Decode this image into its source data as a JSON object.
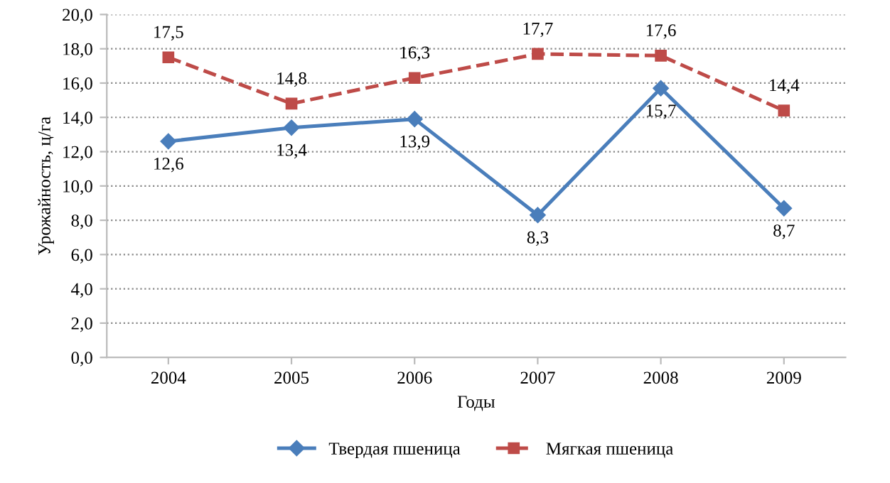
{
  "chart_data": {
    "type": "line",
    "xlabel": "Годы",
    "ylabel": "Урожайность, ц/га",
    "categories": [
      "2004",
      "2005",
      "2006",
      "2007",
      "2008",
      "2009"
    ],
    "ylim": [
      0,
      20
    ],
    "yticks": [
      {
        "value": 0,
        "label": "0,0"
      },
      {
        "value": 2,
        "label": "2,0"
      },
      {
        "value": 4,
        "label": "4,0"
      },
      {
        "value": 6,
        "label": "6,0"
      },
      {
        "value": 8,
        "label": "8,0"
      },
      {
        "value": 10,
        "label": "10,0"
      },
      {
        "value": 12,
        "label": "12,0"
      },
      {
        "value": 14,
        "label": "14,0"
      },
      {
        "value": 16,
        "label": "16,0"
      },
      {
        "value": 18,
        "label": "18,0"
      },
      {
        "value": 20,
        "label": "20,0"
      }
    ],
    "grid": "y",
    "legend": "bottom",
    "series": [
      {
        "name": "Твердая пшеница",
        "color": "#4a7ebb",
        "marker": "diamond",
        "line_style": "solid",
        "values": [
          12.6,
          13.4,
          13.9,
          8.3,
          15.7,
          8.7
        ],
        "value_labels": [
          "12,6",
          "13,4",
          "13,9",
          "8,3",
          "15,7",
          "8,7"
        ]
      },
      {
        "name": "Мягкая пшеница",
        "color": "#be4b48",
        "marker": "square",
        "line_style": "dashed",
        "values": [
          17.5,
          14.8,
          16.3,
          17.7,
          17.6,
          14.4
        ],
        "value_labels": [
          "17,5",
          "14,8",
          "16,3",
          "17,7",
          "17,6",
          "14,4"
        ]
      }
    ]
  }
}
